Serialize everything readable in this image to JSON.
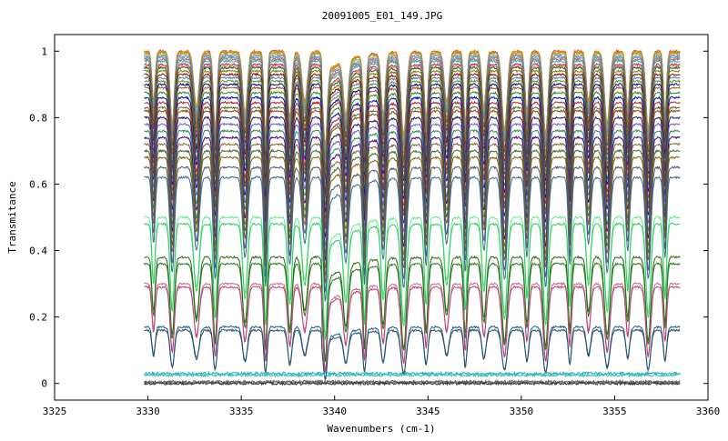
{
  "chart_data": {
    "type": "line",
    "title": "20091005_E01_149.JPG",
    "xlabel": "Wavenumbers (cm-1)",
    "ylabel": "Transmitance",
    "xlim": [
      3325,
      3360
    ],
    "ylim": [
      -0.05,
      1.05
    ],
    "x_ticks": [
      3325,
      3330,
      3335,
      3340,
      3345,
      3350,
      3355,
      3360
    ],
    "x_tick_labels": [
      "3325",
      "3330",
      "3335",
      "3340",
      "3345",
      "3350",
      "3355",
      "3360"
    ],
    "y_ticks": [
      0,
      0.2,
      0.4,
      0.6,
      0.8,
      1
    ],
    "y_tick_labels": [
      "0",
      "0.2",
      "0.4",
      "0.6",
      "0.8",
      "1"
    ],
    "x_range_data": [
      3329.8,
      3358.5
    ],
    "absorption_lines_cm1": [
      3330.3,
      3331.3,
      3332.6,
      3333.6,
      3335.2,
      3336.3,
      3337.6,
      3338.4,
      3339.5,
      3340.6,
      3341.6,
      3342.6,
      3343.7,
      3344.9,
      3346.0,
      3347.0,
      3348.0,
      3349.1,
      3350.3,
      3351.3,
      3352.6,
      3353.6,
      3354.6,
      3355.7,
      3356.8,
      3357.7
    ],
    "grid": false,
    "legend": "none",
    "series_count": 44,
    "series_baselines": [
      1.0,
      0.998,
      0.995,
      0.99,
      0.985,
      0.98,
      0.975,
      0.97,
      0.96,
      0.955,
      0.95,
      0.94,
      0.93,
      0.92,
      0.91,
      0.9,
      0.89,
      0.875,
      0.86,
      0.845,
      0.83,
      0.82,
      0.8,
      0.78,
      0.76,
      0.74,
      0.72,
      0.7,
      0.68,
      0.65,
      0.62,
      0.5,
      0.48,
      0.38,
      0.36,
      0.3,
      0.29,
      0.17,
      0.16,
      0.03,
      0.025,
      0.005,
      0.003,
      0.0
    ],
    "series_colors": [
      "#d43f3f",
      "#ff8c00",
      "#b8860b",
      "#66cc66",
      "#9370db",
      "#5f9ea0",
      "#cd5c5c",
      "#20b2aa",
      "#c71585",
      "#daa520",
      "#2f4f4f",
      "#808000",
      "#8b0000",
      "#4682b4",
      "#6b8e23",
      "#000080",
      "#a0522d",
      "#228b22",
      "#0000cd",
      "#b22222",
      "#556b2f",
      "#8b4513",
      "#191970",
      "#6a5acd",
      "#2e8b57",
      "#4b0082",
      "#7b6b2b",
      "#3a6b2b",
      "#8a5a1a",
      "#4a5a7a",
      "#3a6a8a",
      "#66ee88",
      "#33cc66",
      "#2b6b10",
      "#1f7a1f",
      "#cc6688",
      "#bb4477",
      "#1f5f7f",
      "#2a4f6f",
      "#22aaaa",
      "#33bbbb",
      "#555555",
      "#777777",
      "#333333"
    ]
  }
}
